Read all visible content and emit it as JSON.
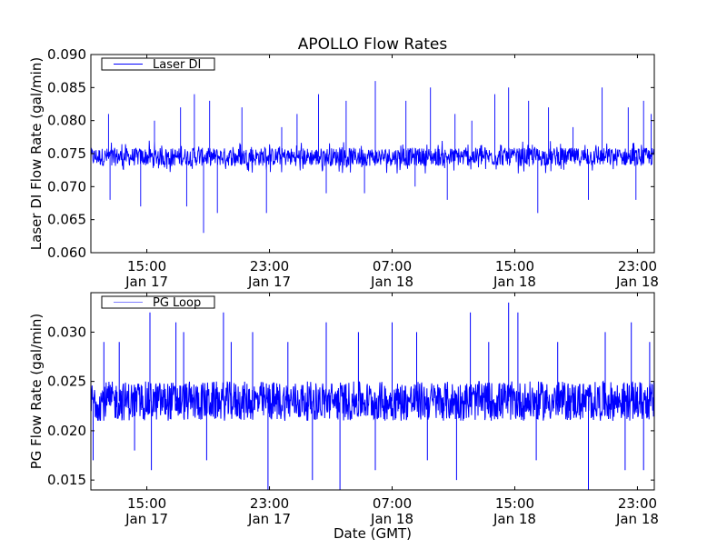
{
  "chart_data": {
    "title": "APOLLO Flow Rates",
    "xlabel": "Date (GMT)",
    "x_unit": "hours since Jan 17 00:00 GMT",
    "xlim": [
      11.35,
      48.1
    ],
    "xticks": [
      {
        "value": 15,
        "time": "15:00",
        "date": "Jan 17"
      },
      {
        "value": 23,
        "time": "23:00",
        "date": "Jan 17"
      },
      {
        "value": 31,
        "time": "07:00",
        "date": "Jan 18"
      },
      {
        "value": 39,
        "time": "15:00",
        "date": "Jan 18"
      },
      {
        "value": 47,
        "time": "23:00",
        "date": "Jan 18"
      }
    ],
    "subplots": [
      {
        "type": "line",
        "ylabel": "Laser DI Flow Rate (gal/min)",
        "ylim": [
          0.06,
          0.09
        ],
        "yticks": [
          "0.060",
          "0.065",
          "0.070",
          "0.075",
          "0.080",
          "0.085",
          "0.090"
        ],
        "legend": {
          "label": "Laser DI",
          "placement": "top-left"
        },
        "color": "#0000ff",
        "baseline": 0.0745,
        "band": [
          0.072,
          0.077
        ],
        "spikes": [
          [
            12.5,
            0.081
          ],
          [
            12.6,
            0.068
          ],
          [
            14.6,
            0.067
          ],
          [
            15.5,
            0.08
          ],
          [
            17.2,
            0.082
          ],
          [
            17.6,
            0.067
          ],
          [
            18.1,
            0.084
          ],
          [
            18.7,
            0.063
          ],
          [
            19.1,
            0.083
          ],
          [
            19.6,
            0.066
          ],
          [
            21.2,
            0.082
          ],
          [
            22.8,
            0.066
          ],
          [
            23.8,
            0.079
          ],
          [
            24.8,
            0.081
          ],
          [
            26.2,
            0.084
          ],
          [
            26.7,
            0.069
          ],
          [
            28.0,
            0.083
          ],
          [
            29.2,
            0.069
          ],
          [
            29.9,
            0.086
          ],
          [
            31.9,
            0.083
          ],
          [
            32.5,
            0.07
          ],
          [
            33.5,
            0.085
          ],
          [
            34.6,
            0.068
          ],
          [
            35.1,
            0.081
          ],
          [
            36.2,
            0.08
          ],
          [
            37.7,
            0.084
          ],
          [
            38.6,
            0.085
          ],
          [
            39.9,
            0.083
          ],
          [
            40.5,
            0.066
          ],
          [
            41.2,
            0.082
          ],
          [
            42.8,
            0.079
          ],
          [
            43.8,
            0.068
          ],
          [
            44.7,
            0.085
          ],
          [
            46.4,
            0.082
          ],
          [
            46.9,
            0.068
          ],
          [
            47.4,
            0.083
          ],
          [
            47.9,
            0.081
          ]
        ]
      },
      {
        "type": "line",
        "ylabel": "PG Flow Rate (gal/min)",
        "ylim": [
          0.014,
          0.034
        ],
        "yticks": [
          "0.015",
          "0.020",
          "0.025",
          "0.030"
        ],
        "legend": {
          "label": "PG Loop",
          "placement": "top-left"
        },
        "color": "#0000ff",
        "baseline": 0.023,
        "band": [
          0.021,
          0.025
        ],
        "spikes": [
          [
            11.5,
            0.017
          ],
          [
            12.2,
            0.029
          ],
          [
            13.2,
            0.029
          ],
          [
            14.2,
            0.018
          ],
          [
            15.2,
            0.032
          ],
          [
            15.3,
            0.016
          ],
          [
            16.9,
            0.031
          ],
          [
            17.4,
            0.03
          ],
          [
            18.9,
            0.017
          ],
          [
            20.0,
            0.032
          ],
          [
            20.5,
            0.029
          ],
          [
            21.9,
            0.03
          ],
          [
            22.9,
            0.014
          ],
          [
            24.2,
            0.029
          ],
          [
            25.8,
            0.015
          ],
          [
            26.7,
            0.031
          ],
          [
            27.6,
            0.014
          ],
          [
            28.8,
            0.03
          ],
          [
            29.9,
            0.016
          ],
          [
            31.0,
            0.031
          ],
          [
            32.6,
            0.03
          ],
          [
            33.3,
            0.017
          ],
          [
            35.2,
            0.015
          ],
          [
            36.1,
            0.032
          ],
          [
            37.3,
            0.029
          ],
          [
            38.6,
            0.033
          ],
          [
            39.2,
            0.032
          ],
          [
            40.4,
            0.017
          ],
          [
            41.8,
            0.029
          ],
          [
            43.8,
            0.014
          ],
          [
            44.9,
            0.03
          ],
          [
            46.2,
            0.016
          ],
          [
            46.6,
            0.031
          ],
          [
            47.4,
            0.016
          ],
          [
            47.8,
            0.029
          ]
        ]
      }
    ]
  }
}
